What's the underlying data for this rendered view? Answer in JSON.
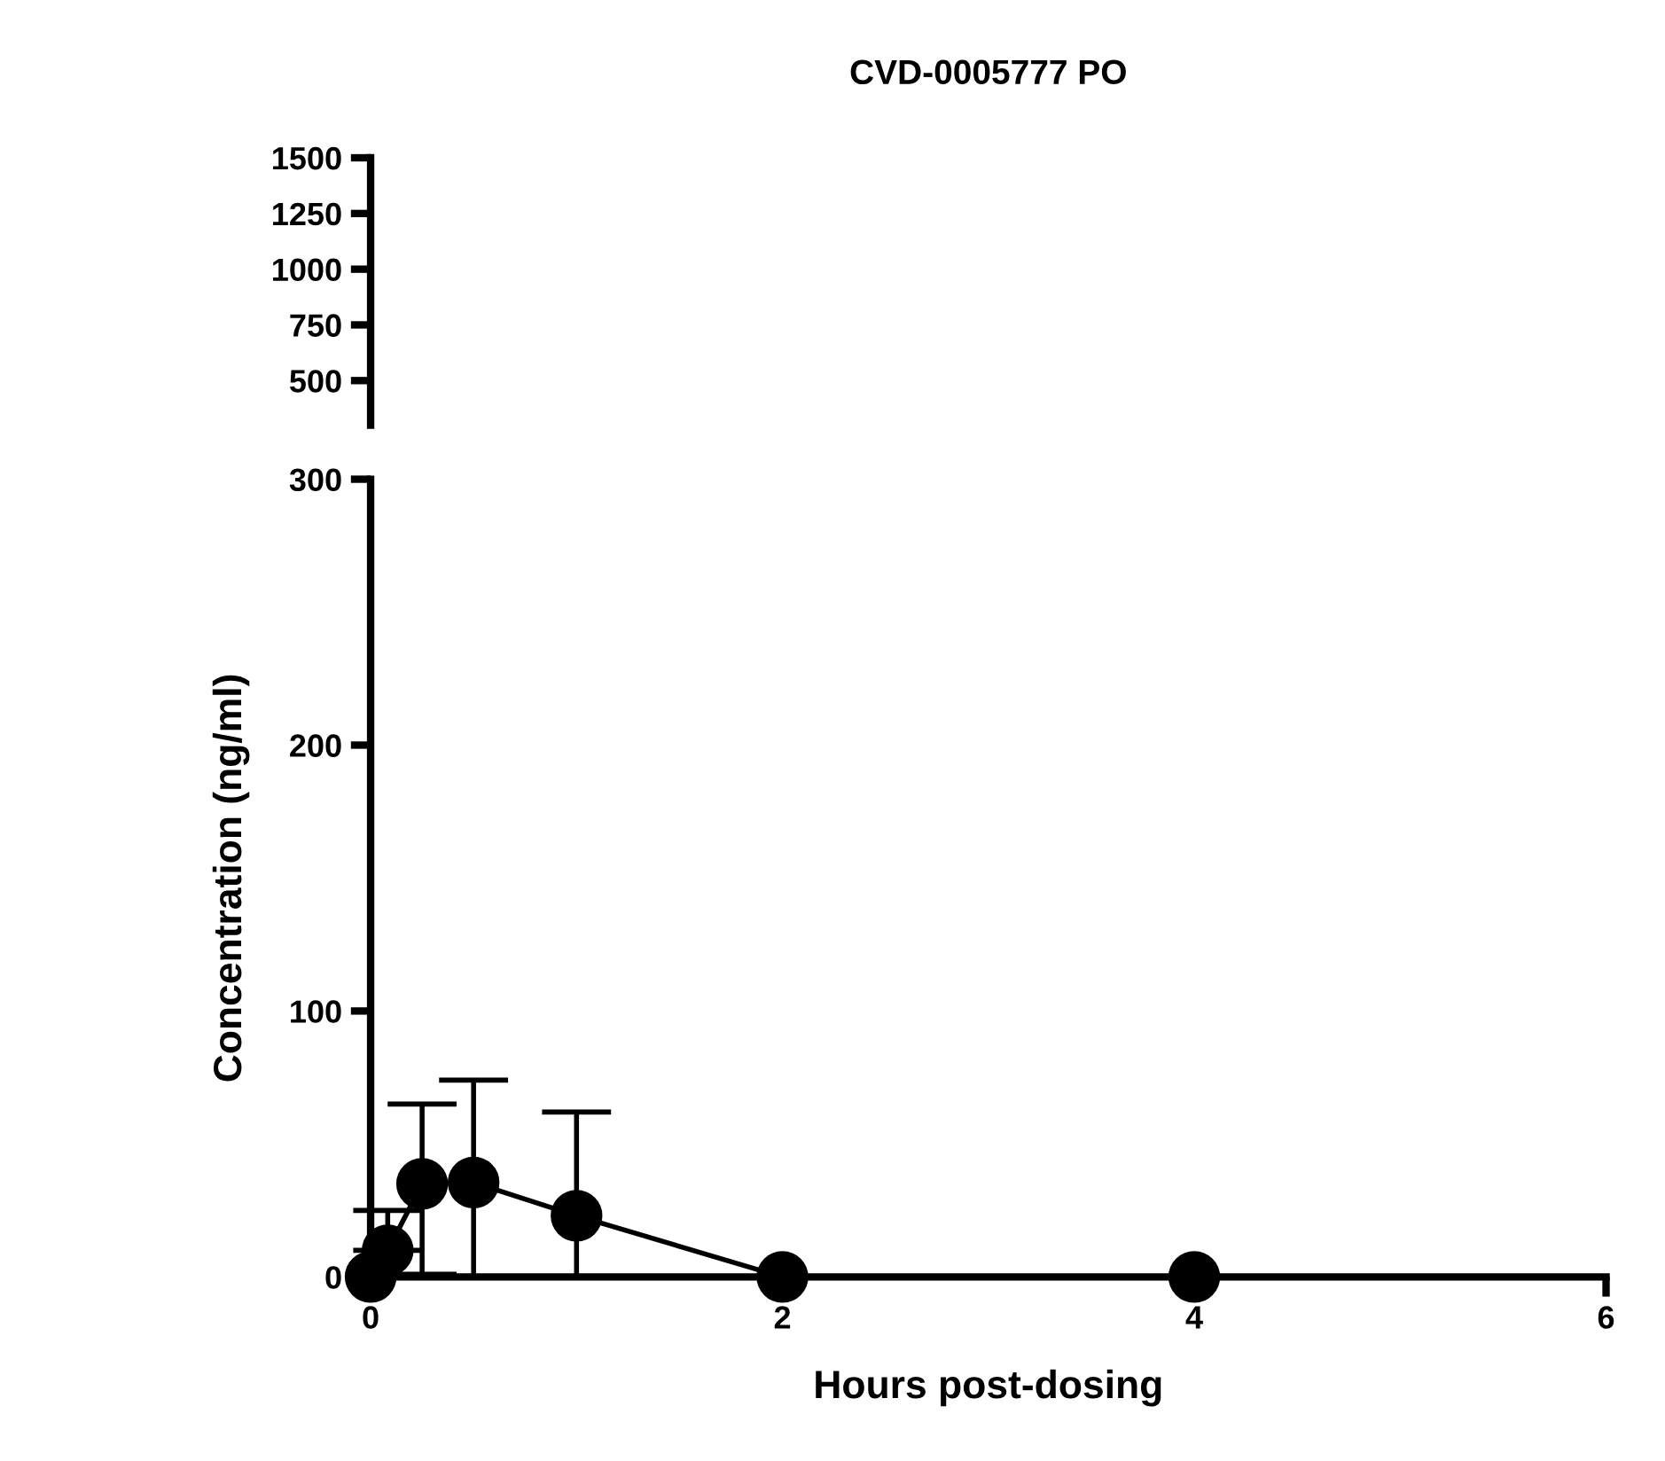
{
  "chart_data": [
    {
      "type": "line",
      "title": "CVD-0005777 PO",
      "xlim": [
        0,
        6
      ],
      "ylim": [
        300,
        1500
      ],
      "yticks": [
        500,
        750,
        1000,
        1250,
        1500
      ],
      "tick_labels": "y",
      "grid": false
    },
    {
      "type": "line",
      "xlabel": "Hours post-dosing",
      "ylabel": "Concentration (ng/ml)",
      "xlim": [
        0,
        6
      ],
      "ylim": [
        0,
        300
      ],
      "xticks": [
        0,
        2,
        4,
        6
      ],
      "yticks": [
        0,
        100,
        200,
        300
      ],
      "grid": false,
      "marker": "circle",
      "line_style": "solid",
      "series": [
        {
          "color": "#000000",
          "x": [
            0,
            0.083,
            0.25,
            0.5,
            1,
            2,
            4
          ],
          "values": [
            0,
            10,
            35,
            35.5,
            23,
            0,
            0
          ],
          "errors": [
            null,
            [
              10,
              25
            ],
            [
              1,
              65
            ],
            [
              0,
              74
            ],
            [
              0,
              62
            ],
            null,
            null
          ]
        }
      ]
    }
  ]
}
